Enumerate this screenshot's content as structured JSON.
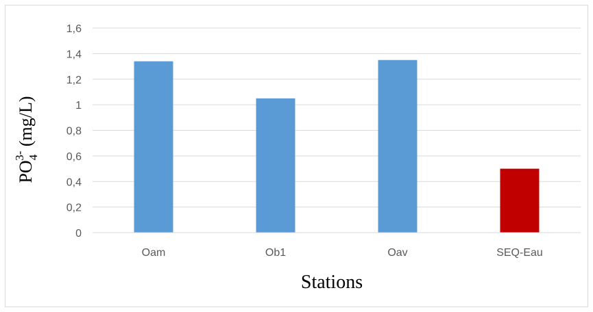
{
  "chart_data": {
    "type": "bar",
    "categories": [
      "Oam",
      "Ob1",
      "Oav",
      "SEQ-Eau"
    ],
    "values": [
      1.34,
      1.05,
      1.35,
      0.5
    ],
    "bar_colors": [
      "#5b9bd5",
      "#5b9bd5",
      "#5b9bd5",
      "#c00000"
    ],
    "title": "",
    "xlabel": "Stations",
    "ylabel": {
      "main": "PO",
      "subscript": "4",
      "superscript": "3-",
      "unit": " (mg/L)"
    },
    "ylim": [
      0,
      1.6
    ],
    "yticks": [
      "0",
      "0,2",
      "0,4",
      "0,6",
      "0,8",
      "1",
      "1,2",
      "1,4",
      "1,6"
    ],
    "grid": true,
    "legend": false
  }
}
